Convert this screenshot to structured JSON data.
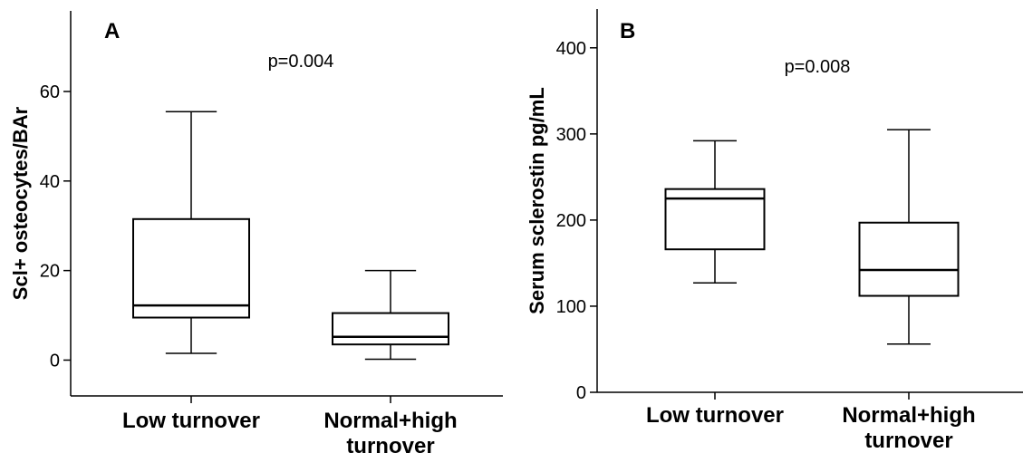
{
  "chart_data": [
    {
      "type": "box",
      "panel_letter": "A",
      "annotation": "p=0.004",
      "ylabel": "Scl+ osteocytes/BAr",
      "ylim": [
        -8,
        78
      ],
      "yticks": [
        0,
        20,
        40,
        60
      ],
      "categories": [
        [
          "Low turnover"
        ],
        [
          "Normal+high",
          "turnover"
        ]
      ],
      "boxes": [
        {
          "min": 1.5,
          "q1": 9.5,
          "median": 12.2,
          "q3": 31.5,
          "max": 55.5
        },
        {
          "min": 0.2,
          "q1": 3.5,
          "median": 5.2,
          "q3": 10.5,
          "max": 20.0
        }
      ]
    },
    {
      "type": "box",
      "panel_letter": "B",
      "annotation": "p=0.008",
      "ylabel": "Serum sclerostin pg/mL",
      "ylim": [
        0,
        445
      ],
      "yticks": [
        0,
        100,
        200,
        300,
        400
      ],
      "categories": [
        [
          "Low turnover"
        ],
        [
          "Normal+high",
          "turnover"
        ]
      ],
      "boxes": [
        {
          "min": 127,
          "q1": 166,
          "median": 225,
          "q3": 236,
          "max": 292
        },
        {
          "min": 56,
          "q1": 112,
          "median": 142,
          "q3": 197,
          "max": 305
        }
      ]
    }
  ]
}
